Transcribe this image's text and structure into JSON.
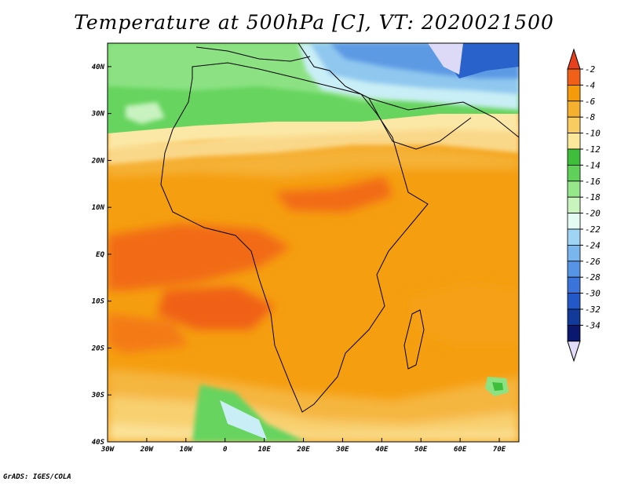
{
  "title": "Temperature at 500hPa [C], VT: 2020021500",
  "credit": "GrADS: IGES/COLA",
  "map": {
    "lon_range": [
      -30,
      75
    ],
    "lat_range": [
      -40,
      45
    ],
    "x_ticks": [
      {
        "lon": -30,
        "label": "30W"
      },
      {
        "lon": -20,
        "label": "20W"
      },
      {
        "lon": -10,
        "label": "10W"
      },
      {
        "lon": 0,
        "label": "0"
      },
      {
        "lon": 10,
        "label": "10E"
      },
      {
        "lon": 20,
        "label": "20E"
      },
      {
        "lon": 30,
        "label": "30E"
      },
      {
        "lon": 40,
        "label": "40E"
      },
      {
        "lon": 50,
        "label": "50E"
      },
      {
        "lon": 60,
        "label": "60E"
      },
      {
        "lon": 70,
        "label": "70E"
      }
    ],
    "y_ticks": [
      {
        "lat": 40,
        "label": "40N"
      },
      {
        "lat": 30,
        "label": "30N"
      },
      {
        "lat": 20,
        "label": "20N"
      },
      {
        "lat": 10,
        "label": "10N"
      },
      {
        "lat": 0,
        "label": "EQ"
      },
      {
        "lat": -10,
        "label": "10S"
      },
      {
        "lat": -20,
        "label": "20S"
      },
      {
        "lat": -30,
        "label": "30S"
      },
      {
        "lat": -40,
        "label": "40S"
      }
    ]
  },
  "colorbar": {
    "top_color": "#e8401c",
    "bottom_color": "#e2dcf8",
    "bins": [
      {
        "label": "-2",
        "color": "#f06018"
      },
      {
        "label": "-4",
        "color": "#f59a0a"
      },
      {
        "label": "-6",
        "color": "#f5b030"
      },
      {
        "label": "-8",
        "color": "#f8cc60"
      },
      {
        "label": "-10",
        "color": "#fbe89a"
      },
      {
        "label": "-12",
        "color": "#3fbe3c"
      },
      {
        "label": "-14",
        "color": "#5fd05a"
      },
      {
        "label": "-16",
        "color": "#96e68a"
      },
      {
        "label": "-18",
        "color": "#c9f4bd"
      },
      {
        "label": "-20",
        "color": "#e4fbf4"
      },
      {
        "label": "-22",
        "color": "#9fd4f4"
      },
      {
        "label": "-24",
        "color": "#7ab6ee"
      },
      {
        "label": "-26",
        "color": "#5894e6"
      },
      {
        "label": "-28",
        "color": "#3a74da"
      },
      {
        "label": "-30",
        "color": "#2358c8"
      },
      {
        "label": "-32",
        "color": "#123a98"
      },
      {
        "label": "-34",
        "color": "#0a1870"
      }
    ]
  }
}
